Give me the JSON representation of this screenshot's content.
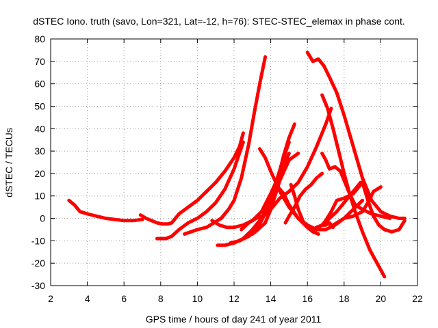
{
  "chart_data": {
    "type": "line",
    "title": "dSTEC Iono. truth (savo, Lon=321, Lat=-12, h=76): STEC-STEC_elemax in phase cont.",
    "xlabel": "GPS time / hours of day 241 of year 2011",
    "ylabel": "dSTEC  / TECUs",
    "xlim": [
      2,
      22
    ],
    "ylim": [
      -30,
      80
    ],
    "xticks": [
      2,
      4,
      6,
      8,
      10,
      12,
      14,
      16,
      18,
      20,
      22
    ],
    "yticks": [
      -30,
      -20,
      -10,
      0,
      10,
      20,
      30,
      40,
      50,
      60,
      70,
      80
    ],
    "grid": true,
    "legend": "none",
    "series_color": "#ff0000",
    "series": [
      {
        "x": [
          3.0,
          3.3,
          3.6,
          4.0,
          4.5,
          5.0,
          5.5,
          6.0,
          6.5,
          7.0
        ],
        "y": [
          8,
          6,
          3,
          2,
          1,
          0,
          -0.5,
          -1,
          -1,
          -0.5
        ]
      },
      {
        "x": [
          6.9,
          7.2,
          7.5,
          7.8,
          8.1,
          8.4,
          8.6
        ],
        "y": [
          1.5,
          0,
          -1,
          -2,
          -2.5,
          -2.5,
          -2
        ]
      },
      {
        "x": [
          8.6,
          9.0,
          9.5,
          10.0,
          10.5,
          11.0,
          11.5,
          12.0,
          12.3,
          12.5
        ],
        "y": [
          -2,
          2,
          5,
          8,
          12,
          16,
          21,
          27,
          32,
          38
        ]
      },
      {
        "x": [
          7.8,
          8.0,
          8.3,
          8.6,
          9.0,
          9.5,
          10.0,
          10.5,
          11.0,
          11.5,
          12.0,
          12.5
        ],
        "y": [
          -9,
          -9,
          -9,
          -8,
          -5,
          -2,
          0,
          3,
          7,
          13,
          22,
          34
        ]
      },
      {
        "x": [
          9.3,
          10.0,
          10.5,
          10.9,
          11.3,
          11.7,
          12.0,
          12.4,
          12.8,
          13.1,
          13.4,
          13.7
        ],
        "y": [
          -7,
          -5,
          -4,
          -2,
          0,
          4,
          8,
          18,
          33,
          47,
          60,
          72
        ]
      },
      {
        "x": [
          10.8,
          11.2,
          11.6,
          12.0,
          12.5,
          13.0,
          13.5,
          14.0,
          14.5,
          15.0
        ],
        "y": [
          -1,
          -3,
          -4,
          -4,
          -3,
          -1,
          3,
          11,
          20,
          29
        ]
      },
      {
        "x": [
          11.1,
          11.5,
          12.0,
          12.5,
          13.0,
          13.5,
          14.0,
          14.4,
          14.7,
          15.0,
          15.3
        ],
        "y": [
          -12,
          -12,
          -11,
          -9,
          -5,
          0,
          8,
          18,
          28,
          36,
          42
        ]
      },
      {
        "x": [
          11.8,
          12.3,
          12.7,
          13.0,
          13.3,
          13.7,
          14.0,
          14.5,
          15.0,
          15.5
        ],
        "y": [
          -11,
          -10,
          -8,
          -7,
          -5,
          -2,
          4,
          17,
          26,
          29
        ]
      },
      {
        "x": [
          12.3,
          12.8,
          13.2,
          13.5,
          13.8,
          14.1,
          14.4,
          14.7,
          15.0
        ],
        "y": [
          -10,
          -8,
          -5,
          -1,
          4,
          11,
          19,
          27,
          34
        ]
      },
      {
        "x": [
          12.4,
          12.8,
          13.2,
          13.6,
          14.0,
          14.5,
          15.0,
          15.5,
          16.0,
          16.5,
          17.0,
          17.3
        ],
        "y": [
          -5,
          -2,
          0,
          1,
          4,
          9,
          12,
          16,
          23,
          32,
          42,
          49
        ]
      },
      {
        "x": [
          13.4,
          13.7,
          14.0,
          14.5,
          15.0,
          15.5,
          16.0,
          16.5,
          17.0,
          17.5,
          18.0,
          18.5,
          19.0
        ],
        "y": [
          31,
          27,
          21,
          12,
          5,
          0,
          -3,
          -5,
          -5,
          -3,
          0,
          4,
          8
        ]
      },
      {
        "x": [
          14.3,
          14.7,
          15.0,
          15.5,
          16.0,
          16.3,
          16.6
        ],
        "y": [
          15,
          11,
          6,
          0,
          -4,
          -6,
          -7
        ]
      },
      {
        "x": [
          15.1,
          15.3,
          15.5,
          15.8,
          16.0,
          16.3,
          16.5,
          16.8,
          17.0,
          17.2,
          17.4
        ],
        "y": [
          15,
          10,
          4,
          -2,
          -4,
          -5,
          -4,
          -3,
          -3,
          -2,
          -4
        ]
      },
      {
        "x": [
          14.8,
          15.0,
          15.3,
          15.6,
          15.9,
          16.2,
          16.5,
          16.8
        ],
        "y": [
          -2,
          1,
          5,
          10,
          13,
          15,
          18,
          20
        ]
      },
      {
        "x": [
          16.0,
          16.3,
          16.6,
          16.9,
          17.2,
          17.6,
          18.0,
          18.5,
          19.0,
          19.5,
          20.0,
          20.5,
          21.0,
          21.3
        ],
        "y": [
          74,
          70,
          71,
          68,
          63,
          56,
          46,
          32,
          18,
          8,
          3,
          1,
          0,
          0
        ]
      },
      {
        "x": [
          16.8,
          17.0,
          17.2,
          17.5,
          17.8,
          18.0,
          18.3,
          18.6,
          19.0,
          19.5,
          20.0,
          20.5
        ],
        "y": [
          29,
          26,
          22,
          23,
          21,
          17,
          11,
          6,
          4,
          2,
          1,
          0
        ]
      },
      {
        "x": [
          16.8,
          17.1,
          17.4,
          17.7,
          18.0,
          18.3,
          18.6,
          19.0,
          19.4,
          19.8,
          20.2
        ],
        "y": [
          55,
          49,
          40,
          30,
          20,
          11,
          3,
          -6,
          -14,
          -20,
          -26
        ]
      },
      {
        "x": [
          16.4,
          16.8,
          17.2,
          17.6,
          18.0,
          18.3,
          18.6,
          18.9
        ],
        "y": [
          -5,
          -3,
          0,
          3,
          7,
          10,
          13,
          16
        ]
      },
      {
        "x": [
          16.8,
          17.0,
          17.3,
          17.6,
          18.0,
          18.5,
          19.0,
          19.3,
          19.6,
          19.9,
          20.2,
          20.6,
          21.0,
          21.3
        ],
        "y": [
          -3,
          -1,
          3,
          8,
          9,
          11,
          16,
          8,
          1,
          -3,
          -5,
          -6,
          -5,
          -1
        ]
      },
      {
        "x": [
          17.2,
          17.6,
          18.0,
          18.5,
          19.0,
          19.3,
          19.6,
          20.0
        ],
        "y": [
          -4,
          -2,
          0,
          1,
          3,
          7,
          12,
          14
        ]
      }
    ]
  }
}
